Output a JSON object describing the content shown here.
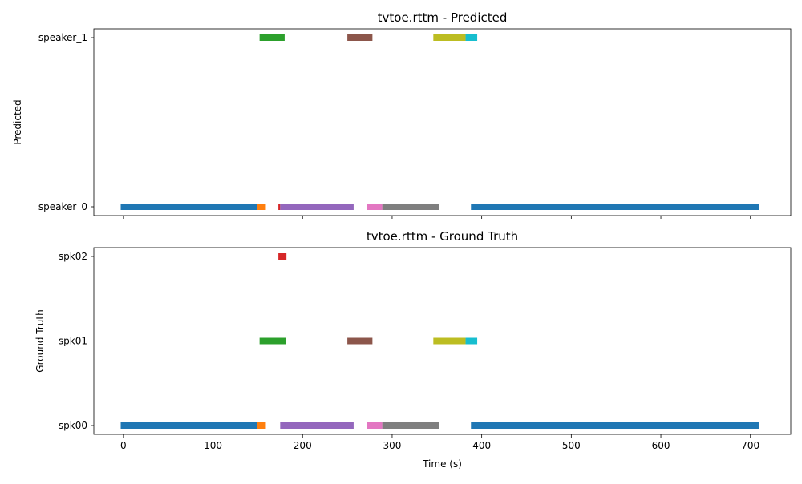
{
  "chart_data": [
    {
      "type": "timeline",
      "title": "tvtoe.rttm - Predicted",
      "ylabel": "Predicted",
      "xlabel": "",
      "xlim": [
        -33,
        745
      ],
      "xticks": [
        0,
        100,
        200,
        300,
        400,
        500,
        600,
        700
      ],
      "show_xtick_labels": false,
      "categories": [
        "speaker_0",
        "speaker_1"
      ],
      "segments": [
        {
          "row": "speaker_0",
          "start": -3,
          "end": 149,
          "color": "#1f77b4"
        },
        {
          "row": "speaker_0",
          "start": 149,
          "end": 159,
          "color": "#ff7f0e"
        },
        {
          "row": "speaker_1",
          "start": 152,
          "end": 180,
          "color": "#2ca02c"
        },
        {
          "row": "speaker_0",
          "start": 173,
          "end": 175,
          "color": "#d62728"
        },
        {
          "row": "speaker_0",
          "start": 175,
          "end": 257,
          "color": "#9467bd"
        },
        {
          "row": "speaker_1",
          "start": 250,
          "end": 278,
          "color": "#8c564b"
        },
        {
          "row": "speaker_0",
          "start": 272,
          "end": 289,
          "color": "#e377c2"
        },
        {
          "row": "speaker_0",
          "start": 289,
          "end": 352,
          "color": "#7f7f7f"
        },
        {
          "row": "speaker_1",
          "start": 346,
          "end": 382,
          "color": "#bcbd22"
        },
        {
          "row": "speaker_1",
          "start": 382,
          "end": 395,
          "color": "#17becf"
        },
        {
          "row": "speaker_0",
          "start": 388,
          "end": 710,
          "color": "#1f77b4"
        }
      ]
    },
    {
      "type": "timeline",
      "title": "tvtoe.rttm - Ground Truth",
      "ylabel": "Ground Truth",
      "xlabel": "Time (s)",
      "xlim": [
        -33,
        745
      ],
      "xticks": [
        0,
        100,
        200,
        300,
        400,
        500,
        600,
        700
      ],
      "show_xtick_labels": true,
      "categories": [
        "spk00",
        "spk01",
        "spk02"
      ],
      "segments": [
        {
          "row": "spk00",
          "start": -3,
          "end": 149,
          "color": "#1f77b4"
        },
        {
          "row": "spk00",
          "start": 149,
          "end": 159,
          "color": "#ff7f0e"
        },
        {
          "row": "spk01",
          "start": 152,
          "end": 181,
          "color": "#2ca02c"
        },
        {
          "row": "spk02",
          "start": 173,
          "end": 182,
          "color": "#d62728"
        },
        {
          "row": "spk00",
          "start": 175,
          "end": 257,
          "color": "#9467bd"
        },
        {
          "row": "spk01",
          "start": 250,
          "end": 278,
          "color": "#8c564b"
        },
        {
          "row": "spk00",
          "start": 272,
          "end": 289,
          "color": "#e377c2"
        },
        {
          "row": "spk00",
          "start": 289,
          "end": 352,
          "color": "#7f7f7f"
        },
        {
          "row": "spk01",
          "start": 346,
          "end": 382,
          "color": "#bcbd22"
        },
        {
          "row": "spk01",
          "start": 382,
          "end": 395,
          "color": "#17becf"
        },
        {
          "row": "spk00",
          "start": 388,
          "end": 710,
          "color": "#1f77b4"
        }
      ]
    }
  ]
}
